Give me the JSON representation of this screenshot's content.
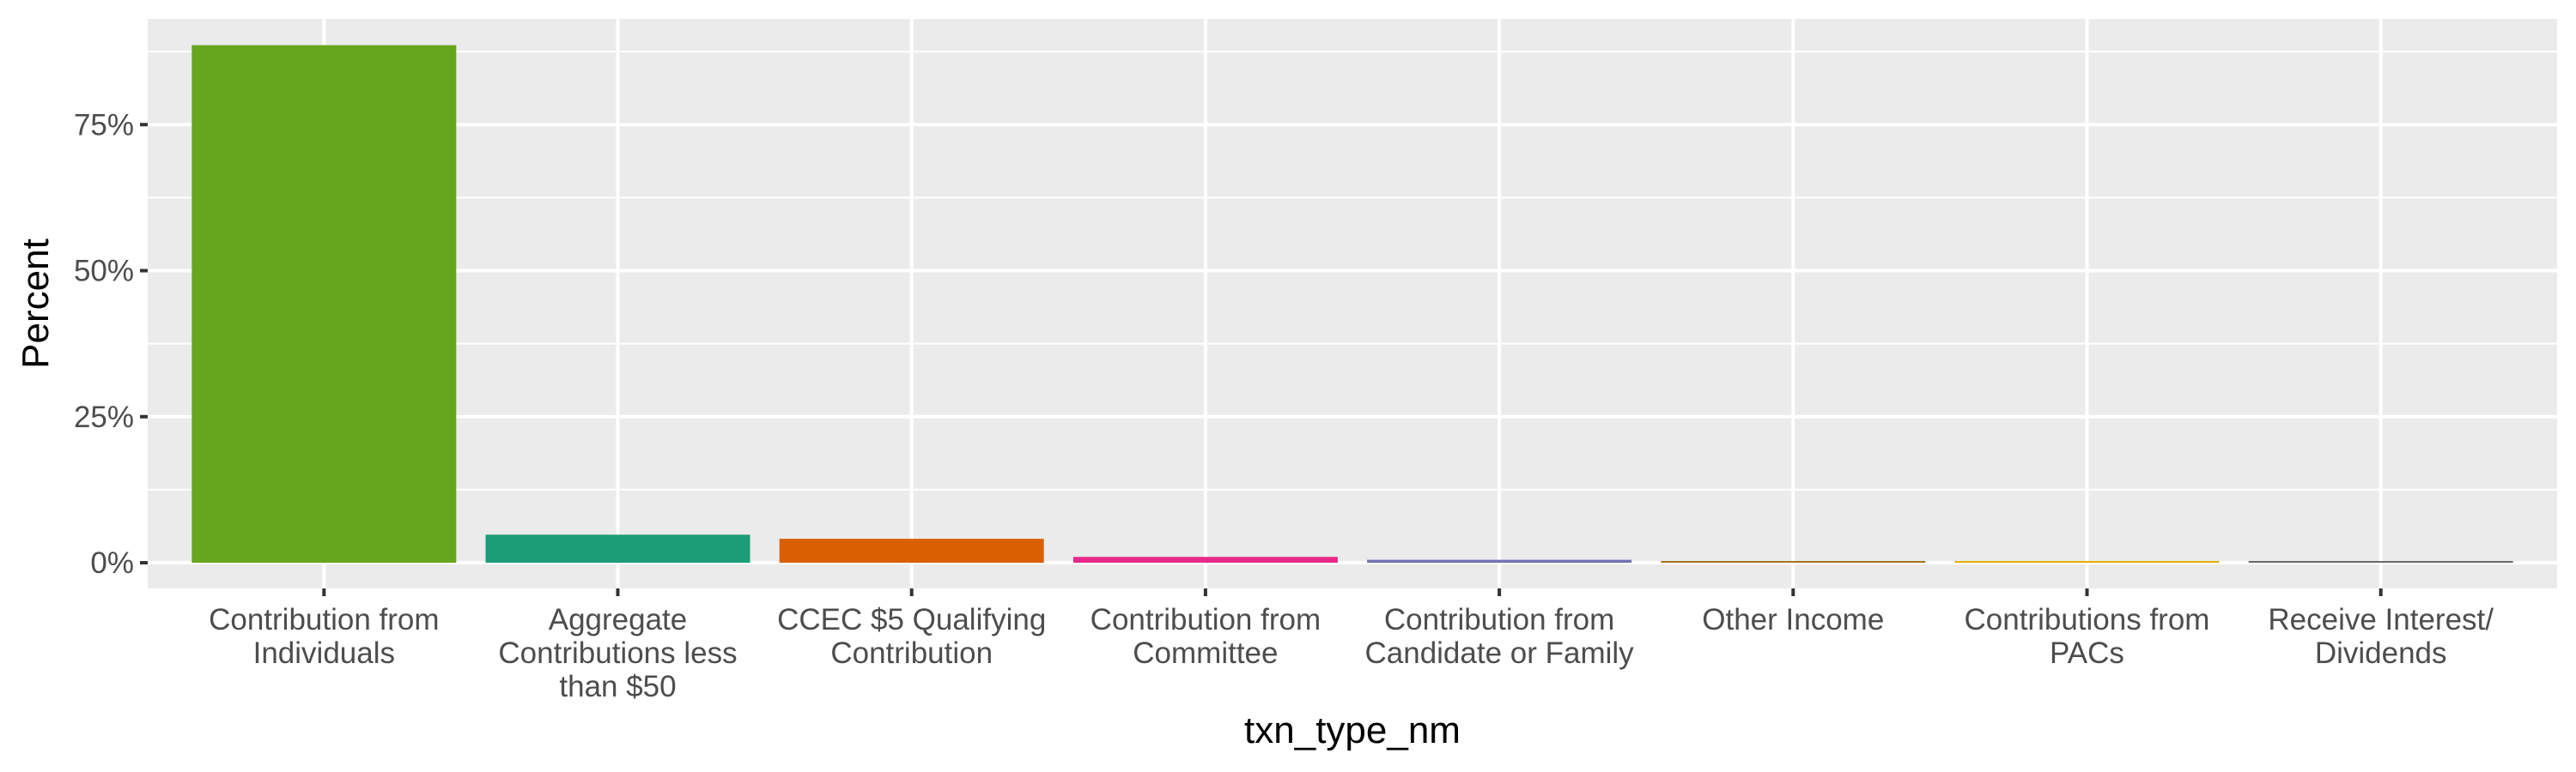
{
  "chart_data": {
    "type": "bar",
    "title": "",
    "xlabel": "txn_type_nm",
    "ylabel": "Percent",
    "categories": [
      "Contribution from Individuals",
      "Aggregate Contributions less than $50",
      "CCEC $5 Qualifying Contribution",
      "Contribution from Committee",
      "Contribution from Candidate or Family",
      "Other Income",
      "Contributions from PACs",
      "Receive Interest/ Dividends"
    ],
    "category_label_lines": [
      [
        "Contribution from",
        "Individuals"
      ],
      [
        "Aggregate",
        "Contributions less",
        "than $50"
      ],
      [
        "CCEC $5 Qualifying",
        "Contribution"
      ],
      [
        "Contribution from",
        "Committee"
      ],
      [
        "Contribution from",
        "Candidate or Family"
      ],
      [
        "Other Income"
      ],
      [
        "Contributions from",
        "PACs"
      ],
      [
        "Receive Interest/",
        "Dividends"
      ]
    ],
    "values": [
      88.6,
      4.8,
      4.1,
      1.0,
      0.5,
      0.3,
      0.2,
      0.2
    ],
    "colors": [
      "#66A61E",
      "#1B9E77",
      "#D95F02",
      "#E7298A",
      "#7570B3",
      "#A6761D",
      "#E6AB02",
      "#666666"
    ],
    "ylim": [
      -4.4,
      93.1
    ],
    "yticks": [
      0,
      25,
      50,
      75
    ],
    "ytick_labels": [
      "0%",
      "25%",
      "50%",
      "75%"
    ],
    "grid": true,
    "legend": "none",
    "panel_background": "#EBEBEB",
    "grid_color": "#FFFFFF"
  }
}
